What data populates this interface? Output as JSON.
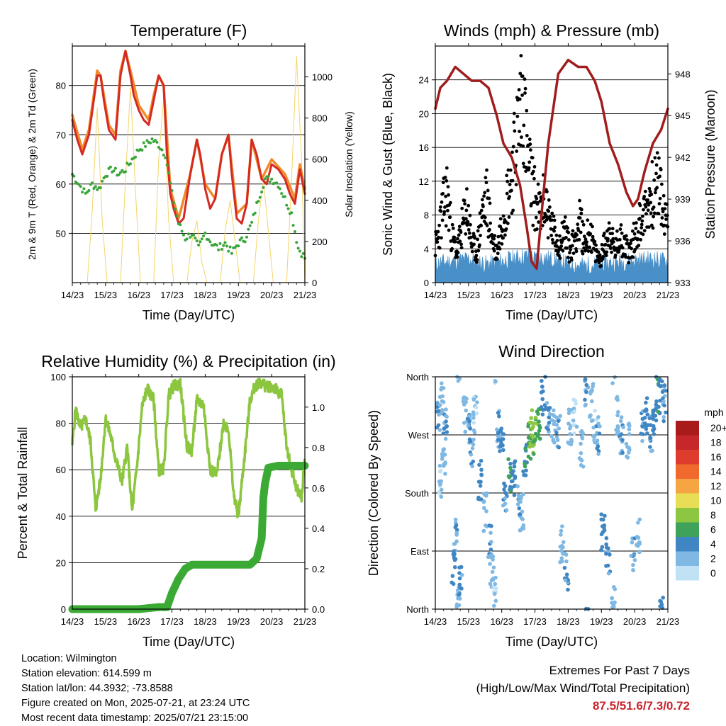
{
  "info": {
    "location": "Location: Wilmington",
    "elevation": "Station elevation: 614.599 m",
    "latlon": "Station lat/lon: 44.3932; -73.8588",
    "created": "Figure created on Mon, 2025-07-21, at 23:24 UTC",
    "recent": "Most recent data timestamp: 2025/07/21 23:15:00"
  },
  "extremes": {
    "title": "Extremes For Past 7 Days",
    "subtitle": "(High/Low/Max Wind/Total Precipitation)",
    "values": "87.5/51.6/7.3/0.72",
    "value_color": "#c8232b"
  },
  "chart_data": [
    {
      "type": "line",
      "title": "Temperature (F)",
      "xlabel": "Time (Day/UTC)",
      "ylabel": "2m & 9m T (Red, Orange) & 2m Td (Green)",
      "ylabel_right": "Solar Insolation (Yellow)",
      "x_ticks": [
        "14/23",
        "15/23",
        "16/23",
        "17/23",
        "18/23",
        "19/23",
        "20/23",
        "21/23"
      ],
      "x_range_days": [
        0,
        7
      ],
      "ylim": [
        40,
        88
      ],
      "y_ticks": [
        50,
        60,
        70,
        80
      ],
      "ylim_right": [
        0,
        1150
      ],
      "y_ticks_right": [
        0,
        200,
        400,
        600,
        800,
        1000
      ],
      "grid": "horizontal",
      "series": [
        {
          "name": "2m T",
          "color": "#d42a24",
          "axis": "left",
          "style": "line",
          "x": [
            0,
            0.15,
            0.3,
            0.5,
            0.75,
            0.85,
            0.95,
            1.1,
            1.3,
            1.45,
            1.6,
            1.75,
            1.85,
            2.0,
            2.15,
            2.3,
            2.45,
            2.6,
            2.75,
            2.85,
            2.95,
            3.05,
            3.2,
            3.35,
            3.55,
            3.75,
            3.85,
            4.0,
            4.15,
            4.3,
            4.5,
            4.7,
            4.8,
            4.95,
            5.1,
            5.25,
            5.4,
            5.55,
            5.7,
            5.85,
            6.0,
            6.2,
            6.4,
            6.55,
            6.7,
            6.85,
            7.0
          ],
          "y": [
            73,
            69,
            66,
            70,
            82,
            82,
            77,
            71,
            69,
            82,
            87,
            82,
            78,
            75,
            73,
            72,
            77,
            82,
            80,
            66,
            58,
            55,
            52,
            53,
            62,
            69,
            66,
            59,
            55,
            57,
            66,
            70,
            62,
            53,
            52,
            56,
            69,
            66,
            61,
            60,
            64,
            63,
            61,
            58,
            56,
            63,
            58
          ]
        },
        {
          "name": "9m T",
          "color": "#f08a2a",
          "axis": "left",
          "style": "line",
          "x": [
            0,
            0.3,
            0.5,
            0.75,
            0.85,
            1.1,
            1.3,
            1.45,
            1.6,
            1.75,
            2.0,
            2.3,
            2.45,
            2.6,
            2.75,
            2.95,
            3.2,
            3.55,
            3.75,
            4.0,
            4.3,
            4.5,
            4.7,
            4.95,
            5.25,
            5.4,
            5.7,
            6.0,
            6.4,
            6.7,
            6.85,
            7.0
          ],
          "y": [
            74,
            67,
            71,
            83,
            82,
            72,
            70,
            83,
            87,
            83,
            76,
            73,
            78,
            82,
            80,
            59,
            53,
            62,
            69,
            60,
            57,
            66,
            70,
            54,
            56,
            69,
            61,
            65,
            62,
            57,
            64,
            59
          ]
        },
        {
          "name": "2m Td",
          "color": "#3aa53a",
          "axis": "left",
          "style": "dots",
          "x": [
            0,
            0.2,
            0.4,
            0.6,
            0.8,
            1.0,
            1.2,
            1.4,
            1.6,
            1.8,
            2.0,
            2.2,
            2.4,
            2.6,
            2.8,
            3.0,
            3.2,
            3.4,
            3.6,
            3.8,
            4.0,
            4.2,
            4.4,
            4.6,
            4.8,
            5.0,
            5.2,
            5.4,
            5.6,
            5.8,
            6.0,
            6.2,
            6.4,
            6.6,
            6.8,
            7.0
          ],
          "y": [
            62,
            60,
            58,
            60,
            59,
            62,
            63,
            62,
            63,
            65,
            67,
            68,
            69,
            68,
            66,
            58,
            52,
            49,
            50,
            47,
            50,
            48,
            47,
            48,
            46,
            48,
            49,
            52,
            57,
            61,
            61,
            60,
            57,
            54,
            47,
            45
          ]
        },
        {
          "name": "Solar Insolation",
          "color": "#f3d56a",
          "axis": "right",
          "style": "line",
          "x": [
            0,
            0.45,
            0.6,
            0.75,
            0.9,
            1.05,
            1.45,
            1.6,
            1.75,
            1.9,
            2.05,
            2.45,
            2.6,
            2.75,
            2.9,
            3.05,
            3.45,
            3.6,
            3.75,
            3.9,
            4.05,
            4.45,
            4.6,
            4.75,
            4.9,
            5.05,
            5.45,
            5.6,
            5.75,
            5.9,
            6.05,
            6.45,
            6.6,
            6.75,
            6.9,
            7.0
          ],
          "y": [
            0,
            0,
            350,
            850,
            300,
            0,
            0,
            500,
            950,
            450,
            0,
            0,
            600,
            900,
            300,
            0,
            0,
            200,
            300,
            100,
            0,
            0,
            250,
            400,
            200,
            0,
            0,
            300,
            500,
            250,
            0,
            0,
            500,
            1100,
            600,
            0
          ]
        }
      ]
    },
    {
      "type": "line",
      "title": "Winds (mph) & Pressure (mb)",
      "xlabel": "Time (Day/UTC)",
      "ylabel": "Sonic Wind & Gust (Blue, Black)",
      "ylabel_right": "Station Pressure (Maroon)",
      "x_ticks": [
        "14/23",
        "15/23",
        "16/23",
        "17/23",
        "18/23",
        "19/23",
        "20/23",
        "21/23"
      ],
      "x_range_days": [
        0,
        7
      ],
      "ylim": [
        0,
        28
      ],
      "y_ticks": [
        0,
        4,
        8,
        12,
        16,
        20,
        24
      ],
      "ylim_right": [
        933,
        950
      ],
      "y_ticks_right": [
        933,
        936,
        939,
        942,
        945,
        948
      ],
      "grid": "horizontal",
      "series": [
        {
          "name": "Sonic Wind",
          "color": "#4a90c8",
          "axis": "left",
          "style": "area",
          "x": [
            0,
            0.5,
            1.0,
            1.5,
            2.0,
            2.5,
            2.8,
            3.0,
            3.2,
            3.5,
            4.0,
            4.5,
            5.0,
            5.5,
            6.0,
            6.5,
            7.0
          ],
          "y": [
            2.3,
            2.5,
            2.8,
            2.2,
            2.5,
            3.0,
            3.2,
            2.8,
            3.0,
            2.8,
            2.2,
            2.0,
            2.2,
            2.4,
            2.6,
            2.8,
            2.5
          ]
        },
        {
          "name": "Gust",
          "color": "#000000",
          "axis": "left",
          "style": "dots",
          "x": [
            0.05,
            0.2,
            0.35,
            0.5,
            0.65,
            0.8,
            0.95,
            1.1,
            1.25,
            1.4,
            1.55,
            1.7,
            1.85,
            2.0,
            2.15,
            2.3,
            2.45,
            2.55,
            2.65,
            2.75,
            2.85,
            2.95,
            3.05,
            3.15,
            3.3,
            3.45,
            3.6,
            3.75,
            3.9,
            4.05,
            4.2,
            4.35,
            4.5,
            4.65,
            4.8,
            4.95,
            5.1,
            5.25,
            5.4,
            5.55,
            5.7,
            5.85,
            6.0,
            6.15,
            6.3,
            6.45,
            6.6,
            6.75,
            6.9
          ],
          "y": [
            5,
            9,
            12,
            6,
            4,
            7,
            10,
            5,
            4,
            9,
            11,
            6,
            4,
            8,
            11,
            14,
            19,
            23,
            25,
            17,
            14,
            12,
            10,
            9,
            11,
            8,
            6,
            5,
            7,
            4,
            6,
            8,
            5,
            7,
            4,
            3,
            5,
            7,
            4,
            6,
            5,
            4,
            6,
            8,
            9,
            11,
            12,
            13,
            8
          ]
        },
        {
          "name": "Station Pressure",
          "color": "#a11d1d",
          "axis": "right",
          "style": "line",
          "x": [
            0,
            0.15,
            0.35,
            0.6,
            0.85,
            1.1,
            1.35,
            1.6,
            1.85,
            2.05,
            2.3,
            2.55,
            2.75,
            2.9,
            3.05,
            3.2,
            3.4,
            3.7,
            4.0,
            4.3,
            4.55,
            4.8,
            5.0,
            5.25,
            5.5,
            5.75,
            5.95,
            6.1,
            6.3,
            6.55,
            6.8,
            7.0
          ],
          "y": [
            945.5,
            947,
            947.5,
            948.5,
            948.0,
            947.5,
            947.5,
            947.0,
            945.0,
            943.0,
            942.0,
            940.0,
            937.0,
            934.5,
            934.0,
            938.0,
            943.0,
            948.0,
            949.0,
            948.5,
            948.5,
            947.5,
            946.0,
            943.0,
            941.5,
            939.5,
            938.5,
            939.0,
            941.0,
            943.0,
            944.0,
            945.5
          ]
        }
      ]
    },
    {
      "type": "line",
      "title": "Relative Humidity (%) & Precipitation (in)",
      "xlabel": "Time (Day/UTC)",
      "ylabel": "Percent & Total Rainfall",
      "x_ticks": [
        "14/23",
        "15/23",
        "16/23",
        "17/23",
        "18/23",
        "19/23",
        "20/23",
        "21/23"
      ],
      "x_range_days": [
        0,
        7
      ],
      "ylim": [
        0,
        100
      ],
      "y_ticks": [
        0,
        20,
        40,
        60,
        80,
        100
      ],
      "ylim_right": [
        0,
        1.15
      ],
      "y_ticks_right": [
        "0.0",
        "0.2",
        "0.4",
        "0.6",
        "0.8",
        "1.0"
      ],
      "grid": "horizontal",
      "series": [
        {
          "name": "Relative Humidity",
          "color": "#8cc63f",
          "axis": "left",
          "style": "line",
          "x": [
            0,
            0.1,
            0.25,
            0.4,
            0.55,
            0.7,
            0.85,
            1.0,
            1.15,
            1.3,
            1.5,
            1.65,
            1.8,
            1.95,
            2.1,
            2.25,
            2.45,
            2.6,
            2.75,
            2.9,
            3.05,
            3.25,
            3.45,
            3.6,
            3.75,
            3.95,
            4.15,
            4.35,
            4.55,
            4.7,
            4.85,
            5.0,
            5.2,
            5.35,
            5.5,
            5.65,
            5.8,
            5.95,
            6.1,
            6.3,
            6.45,
            6.6,
            6.75,
            6.9,
            7.0
          ],
          "y": [
            71,
            86,
            78,
            82,
            72,
            43,
            56,
            82,
            75,
            65,
            55,
            70,
            42,
            62,
            87,
            95,
            90,
            60,
            60,
            92,
            96,
            97,
            70,
            68,
            90,
            88,
            60,
            58,
            80,
            78,
            50,
            40,
            68,
            90,
            96,
            98,
            96,
            96,
            95,
            92,
            70,
            60,
            52,
            48,
            65
          ]
        },
        {
          "name": "Total Rainfall",
          "color": "#3aaa35",
          "axis": "right",
          "style": "line",
          "x": [
            0,
            1.0,
            2.0,
            2.6,
            2.85,
            3.0,
            3.2,
            3.4,
            3.6,
            3.8,
            4.5,
            5.0,
            5.35,
            5.55,
            5.7,
            5.75,
            5.8,
            5.9,
            6.2,
            6.6,
            7.0
          ],
          "y": [
            0,
            0,
            0,
            0.01,
            0.01,
            0.08,
            0.15,
            0.2,
            0.22,
            0.22,
            0.22,
            0.22,
            0.22,
            0.25,
            0.35,
            0.55,
            0.62,
            0.7,
            0.71,
            0.71,
            0.71
          ]
        }
      ]
    },
    {
      "type": "scatter",
      "title": "Wind Direction",
      "xlabel": "Time (Day/UTC)",
      "ylabel": "Direction (Colored By Speed)",
      "x_ticks": [
        "14/23",
        "15/23",
        "16/23",
        "17/23",
        "18/23",
        "19/23",
        "20/23",
        "21/23"
      ],
      "x_range_days": [
        0,
        7
      ],
      "y_categories": [
        "North",
        "East",
        "South",
        "West",
        "North"
      ],
      "ylim_deg": [
        0,
        360
      ],
      "grid": "horizontal",
      "colorbar": {
        "title": "mph",
        "labels": [
          "20+",
          "18",
          "16",
          "14",
          "12",
          "10",
          "8",
          "6",
          "4",
          "2",
          "0"
        ],
        "colors": [
          "#a91b1b",
          "#c5272b",
          "#de3c2d",
          "#ef6a2c",
          "#f5a642",
          "#e7dd57",
          "#8dc640",
          "#3fa25a",
          "#3f86c3",
          "#7fb8e3",
          "#c1e1f5"
        ]
      },
      "points": {
        "x": [
          0.1,
          0.2,
          0.3,
          0.15,
          0.25,
          0.55,
          0.6,
          0.7,
          0.75,
          0.9,
          1.0,
          1.1,
          1.2,
          1.35,
          1.5,
          1.65,
          1.7,
          1.8,
          1.9,
          2.0,
          2.1,
          2.25,
          2.35,
          2.5,
          2.6,
          2.7,
          2.85,
          2.9,
          3.0,
          3.1,
          3.25,
          3.4,
          3.55,
          3.7,
          3.8,
          3.95,
          4.05,
          4.2,
          4.4,
          4.55,
          4.7,
          4.8,
          4.9,
          5.05,
          5.2,
          5.35,
          5.5,
          5.6,
          5.8,
          5.95,
          6.1,
          6.25,
          6.35,
          6.5,
          6.6,
          6.7,
          6.8,
          6.9
        ],
        "deg": [
          300,
          320,
          280,
          200,
          230,
          60,
          110,
          20,
          40,
          300,
          280,
          250,
          300,
          200,
          150,
          100,
          60,
          20,
          280,
          250,
          180,
          210,
          200,
          170,
          150,
          230,
          260,
          280,
          270,
          290,
          330,
          300,
          280,
          270,
          100,
          60,
          280,
          300,
          250,
          340,
          320,
          280,
          270,
          120,
          80,
          20,
          300,
          270,
          260,
          90,
          110,
          280,
          300,
          270,
          290,
          330,
          350,
          320
        ],
        "speed": [
          3,
          2,
          3,
          1,
          2,
          4,
          3,
          2,
          3,
          2,
          3,
          3,
          1,
          4,
          2,
          3,
          2,
          1,
          3,
          4,
          3,
          5,
          4,
          3,
          2,
          5,
          6,
          8,
          7,
          6,
          4,
          3,
          2,
          3,
          2,
          3,
          2,
          1,
          2,
          3,
          2,
          1,
          3,
          4,
          3,
          2,
          2,
          3,
          2,
          3,
          2,
          3,
          4,
          3,
          4,
          5,
          4,
          3
        ]
      }
    }
  ]
}
